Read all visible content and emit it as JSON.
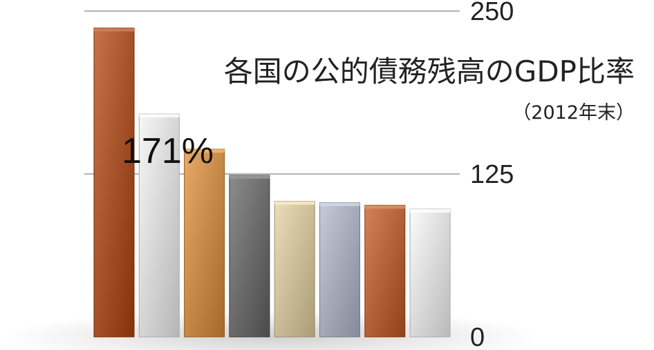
{
  "chart_data": {
    "type": "bar",
    "title": "各国の公的債務残高のGDP比率",
    "subtitle": "（2012年末）",
    "values": [
      237,
      171,
      144,
      124,
      104,
      103,
      101,
      98
    ],
    "colors": [
      "#a8552e",
      "#d9d9d9",
      "#c98c4a",
      "#6e6e6e",
      "#cdc09a",
      "#a7adbb",
      "#b5643c",
      "#dddddd"
    ],
    "data_label": "171%",
    "data_label_index": 1,
    "yticks": [
      "0",
      "125",
      "250"
    ],
    "ylim": [
      0,
      250
    ],
    "grid": true
  }
}
